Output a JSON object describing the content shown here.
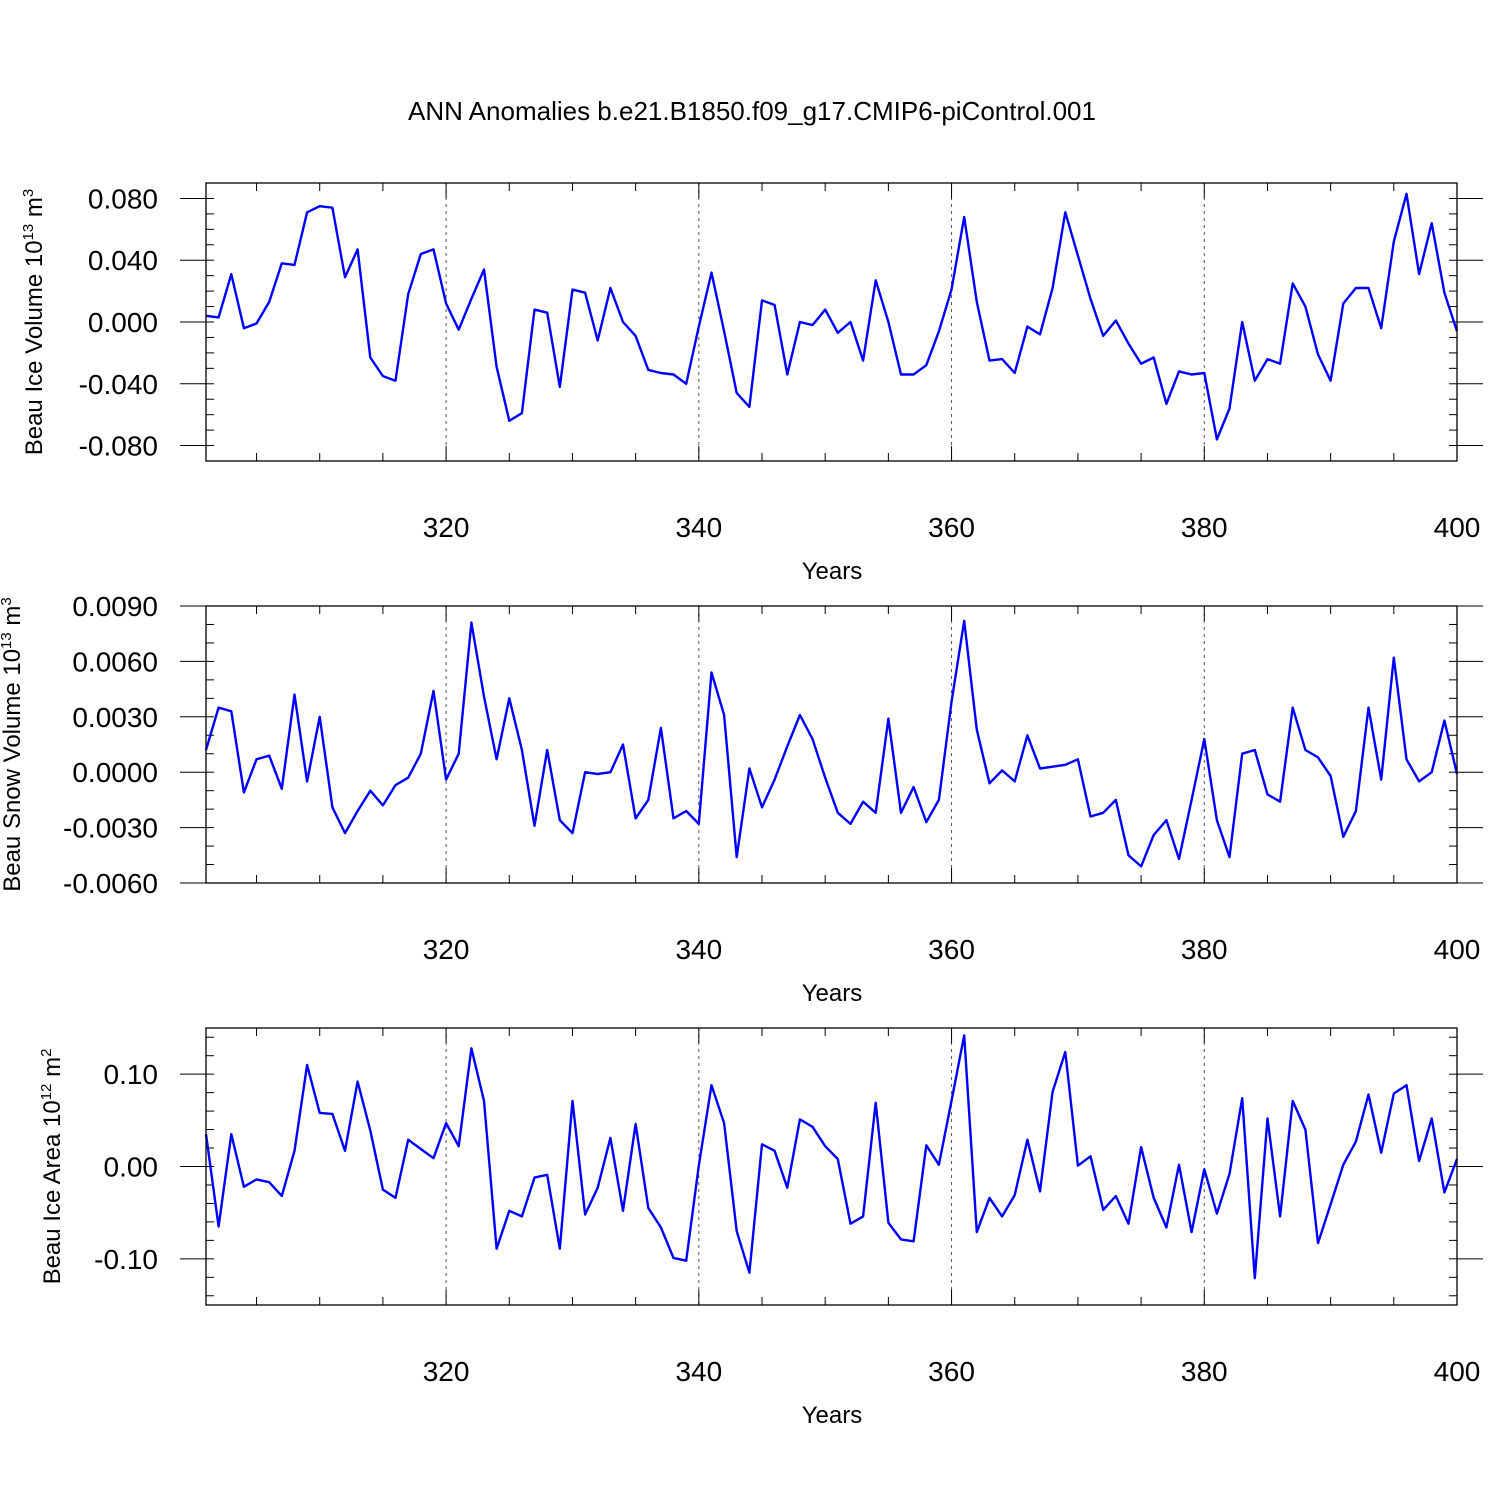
{
  "title": "ANN Anomalies b.e21.B1850.f09_g17.CMIP6-piControl.001",
  "colors": {
    "line": "#0000ff",
    "axes": "#000000",
    "grid": "#555555"
  },
  "chart_data": [
    {
      "type": "line",
      "name": "ice-volume",
      "ylabel_main": "Beau Ice Volume 10",
      "ylabel_exp": "13",
      "ylabel_unit": "m",
      "ylabel_unit_exp": "3",
      "xlabel": "Years",
      "xlim": [
        301,
        400
      ],
      "ylim": [
        -0.09,
        0.09
      ],
      "xticks": [
        320,
        340,
        360,
        380,
        400
      ],
      "xtick_labels": [
        "320",
        "340",
        "360",
        "380",
        "400"
      ],
      "yticks": [
        0.08,
        0.04,
        0.0,
        -0.04,
        -0.08
      ],
      "ytick_labels": [
        "0.080",
        "0.040",
        "0.000",
        "-0.040",
        "-0.080"
      ],
      "minor_y": 0.01,
      "vertical_dashed": [
        320,
        340,
        360,
        380
      ],
      "x_start": 301,
      "y": [
        0.004,
        0.003,
        0.031,
        -0.004,
        -0.001,
        0.013,
        0.038,
        0.037,
        0.071,
        0.075,
        0.074,
        0.029,
        0.047,
        -0.023,
        -0.035,
        -0.038,
        0.018,
        0.044,
        0.047,
        0.012,
        -0.005,
        0.015,
        0.034,
        -0.029,
        -0.064,
        -0.059,
        0.008,
        0.006,
        -0.042,
        0.021,
        0.019,
        -0.012,
        0.022,
        0.0,
        -0.009,
        -0.031,
        -0.033,
        -0.034,
        -0.04,
        -0.003,
        0.032,
        -0.006,
        -0.046,
        -0.055,
        0.014,
        0.011,
        -0.034,
        0.0,
        -0.002,
        0.008,
        -0.007,
        0.0,
        -0.025,
        0.027,
        0.0,
        -0.034,
        -0.034,
        -0.028,
        -0.006,
        0.021,
        0.068,
        0.013,
        -0.025,
        -0.024,
        -0.033,
        -0.003,
        -0.008,
        0.022,
        0.071,
        0.043,
        0.015,
        -0.009,
        0.001,
        -0.014,
        -0.027,
        -0.023,
        -0.053,
        -0.032,
        -0.034,
        -0.033,
        -0.076,
        -0.056,
        0.0,
        -0.038,
        -0.024,
        -0.027,
        0.025,
        0.01,
        -0.021,
        -0.038,
        0.012,
        0.022,
        0.022,
        -0.004,
        0.052,
        0.083,
        0.031,
        0.064,
        0.019,
        -0.006
      ]
    },
    {
      "type": "line",
      "name": "snow-volume",
      "ylabel_main": "Beau Snow Volume 10",
      "ylabel_exp": "13",
      "ylabel_unit": "m",
      "ylabel_unit_exp": "3",
      "xlabel": "Years",
      "xlim": [
        301,
        400
      ],
      "ylim": [
        -0.006,
        0.009
      ],
      "xticks": [
        320,
        340,
        360,
        380,
        400
      ],
      "xtick_labels": [
        "320",
        "340",
        "360",
        "380",
        "400"
      ],
      "yticks": [
        0.009,
        0.006,
        0.003,
        0.0,
        -0.003,
        -0.006
      ],
      "ytick_labels": [
        "0.0090",
        "0.0060",
        "0.0030",
        "0.0000",
        "-0.0030",
        "-0.0060"
      ],
      "minor_y": 0.001,
      "vertical_dashed": [
        320,
        340,
        360,
        380
      ],
      "x_start": 301,
      "y": [
        0.0012,
        0.0035,
        0.0033,
        -0.0011,
        0.0007,
        0.0009,
        -0.0009,
        0.0042,
        -0.0005,
        0.003,
        -0.0019,
        -0.0033,
        -0.0021,
        -0.001,
        -0.0018,
        -0.0007,
        -0.0003,
        0.001,
        0.0044,
        -0.0004,
        0.001,
        0.0081,
        0.0041,
        0.0007,
        0.004,
        0.0012,
        -0.0029,
        0.0012,
        -0.0026,
        -0.0033,
        0.0,
        -0.0001,
        0.0,
        0.0015,
        -0.0025,
        -0.0015,
        0.0024,
        -0.0025,
        -0.0021,
        -0.0028,
        0.0054,
        0.0031,
        -0.0046,
        0.0002,
        -0.0019,
        -0.0004,
        0.0014,
        0.0031,
        0.0018,
        -0.0003,
        -0.0022,
        -0.0028,
        -0.0016,
        -0.0022,
        0.0029,
        -0.0022,
        -0.0008,
        -0.0027,
        -0.0015,
        0.0038,
        0.0082,
        0.0023,
        -0.0006,
        0.0001,
        -0.0005,
        0.002,
        0.0002,
        0.0003,
        0.0004,
        0.0007,
        -0.0024,
        -0.0022,
        -0.0015,
        -0.0045,
        -0.0051,
        -0.0034,
        -0.0026,
        -0.0047,
        -0.0015,
        0.0018,
        -0.0026,
        -0.0046,
        0.001,
        0.0012,
        -0.0012,
        -0.0016,
        0.0035,
        0.0012,
        0.0008,
        -0.0002,
        -0.0035,
        -0.0021,
        0.0035,
        -0.0004,
        0.0062,
        0.0007,
        -0.0005,
        0.0,
        0.0028,
        -0.0001
      ]
    },
    {
      "type": "line",
      "name": "ice-area",
      "ylabel_main": "Beau Ice Area 10",
      "ylabel_exp": "12",
      "ylabel_unit": "m",
      "ylabel_unit_exp": "2",
      "xlabel": "Years",
      "xlim": [
        301,
        400
      ],
      "ylim": [
        -0.15,
        0.15
      ],
      "xticks": [
        320,
        340,
        360,
        380,
        400
      ],
      "xtick_labels": [
        "320",
        "340",
        "360",
        "380",
        "400"
      ],
      "yticks": [
        0.1,
        0.0,
        -0.1
      ],
      "ytick_labels": [
        "0.10",
        "0.00",
        "-0.10"
      ],
      "minor_y": 0.02,
      "vertical_dashed": [
        320,
        340,
        360,
        380
      ],
      "x_start": 301,
      "y": [
        0.035,
        -0.065,
        0.035,
        -0.022,
        -0.014,
        -0.017,
        -0.032,
        0.017,
        0.11,
        0.058,
        0.057,
        0.017,
        0.092,
        0.039,
        -0.025,
        -0.034,
        0.029,
        0.019,
        0.009,
        0.047,
        0.022,
        0.128,
        0.071,
        -0.089,
        -0.048,
        -0.054,
        -0.012,
        -0.009,
        -0.089,
        0.071,
        -0.052,
        -0.023,
        0.031,
        -0.048,
        0.046,
        -0.045,
        -0.066,
        -0.099,
        -0.102,
        0.001,
        0.088,
        0.047,
        -0.07,
        -0.115,
        0.024,
        0.017,
        -0.023,
        0.051,
        0.043,
        0.022,
        0.008,
        -0.062,
        -0.054,
        0.069,
        -0.061,
        -0.079,
        -0.081,
        0.023,
        0.002,
        0.071,
        0.142,
        -0.071,
        -0.034,
        -0.054,
        -0.031,
        0.029,
        -0.027,
        0.081,
        0.124,
        0.001,
        0.011,
        -0.047,
        -0.032,
        -0.062,
        0.021,
        -0.034,
        -0.066,
        0.002,
        -0.071,
        -0.003,
        -0.051,
        -0.008,
        0.074,
        -0.121,
        0.052,
        -0.054,
        0.071,
        0.04,
        -0.083,
        -0.041,
        0.002,
        0.027,
        0.078,
        0.015,
        0.079,
        0.088,
        0.006,
        0.052,
        -0.028,
        0.008
      ]
    }
  ]
}
